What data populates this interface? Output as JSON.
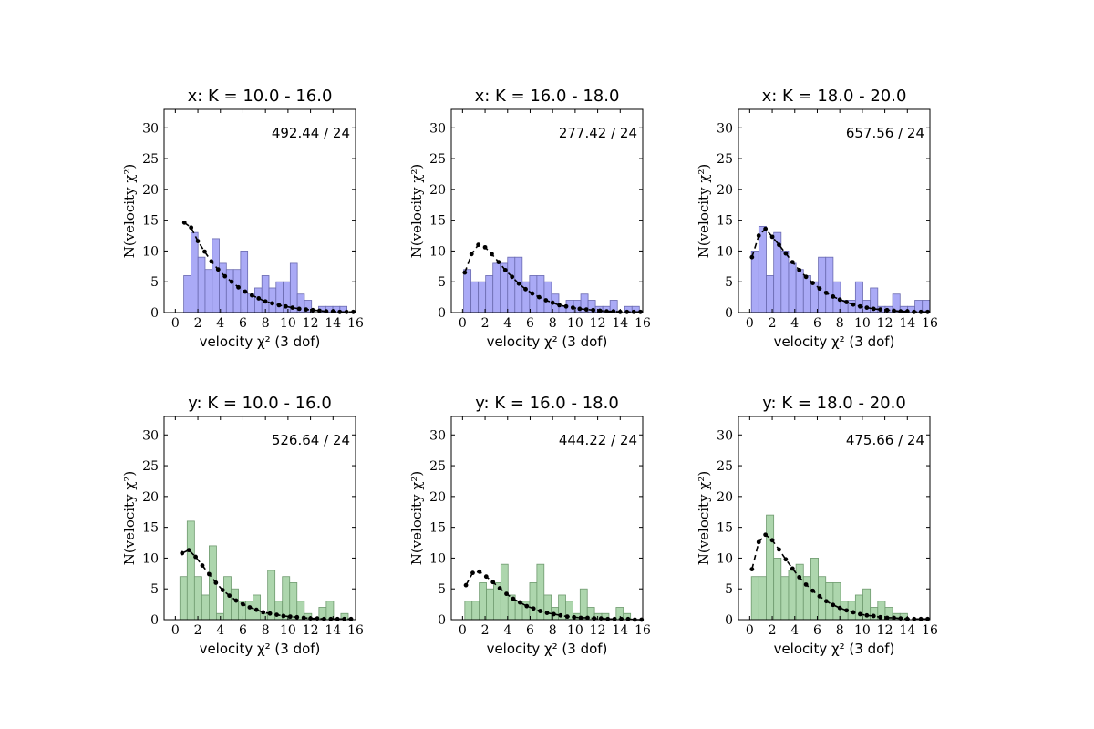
{
  "figure": {
    "axis_style": {
      "frame": "box",
      "grid": false
    },
    "colors": {
      "x_bars": "#aaaaf6",
      "x_edge": "#6a6ab0",
      "y_bars": "#add6ad",
      "y_edge": "#6f9a6f",
      "fit_curve": "#000000"
    }
  },
  "chart_data": [
    {
      "type": "bar",
      "title": "x: K = 10.0 - 16.0",
      "annotation": "492.44 / 24",
      "xlabel": "velocity χ² (3 dof)",
      "ylabel": "N(velocity χ²)",
      "xlim": [
        -1,
        16
      ],
      "ylim": [
        0,
        33
      ],
      "xticks": [
        0,
        2,
        4,
        6,
        8,
        10,
        12,
        14,
        16
      ],
      "yticks": [
        0,
        5,
        10,
        15,
        20,
        25,
        30
      ],
      "bin_start": 0.75,
      "bin_width": 0.63,
      "values": [
        6,
        13,
        9,
        7,
        12,
        8,
        7,
        7,
        10,
        3,
        4,
        6,
        4,
        5,
        5,
        8,
        3,
        2,
        0,
        1,
        1,
        1,
        1
      ],
      "bar_color": "x",
      "fit": {
        "x": [
          0.8,
          1.4,
          2.0,
          2.6,
          3.2,
          3.8,
          4.4,
          5.0,
          5.6,
          6.2,
          6.8,
          7.4,
          8.0,
          8.6,
          9.2,
          9.8,
          10.4,
          11.0,
          11.6,
          12.2,
          12.8,
          13.4,
          14.0,
          14.6,
          15.2,
          15.8
        ],
        "y": [
          14.6,
          13.8,
          11.6,
          9.9,
          8.3,
          7.0,
          5.9,
          5.0,
          4.1,
          3.4,
          2.8,
          2.3,
          1.8,
          1.5,
          1.2,
          1.0,
          0.8,
          0.6,
          0.5,
          0.4,
          0.3,
          0.2,
          0.2,
          0.1,
          0.1,
          0.1
        ]
      }
    },
    {
      "type": "bar",
      "title": "x: K = 16.0 - 18.0",
      "annotation": "277.42 / 24",
      "xlabel": "velocity χ² (3 dof)",
      "ylabel": "N(velocity χ²)",
      "xlim": [
        -1,
        16
      ],
      "ylim": [
        0,
        33
      ],
      "xticks": [
        0,
        2,
        4,
        6,
        8,
        10,
        12,
        14,
        16
      ],
      "yticks": [
        0,
        5,
        10,
        15,
        20,
        25,
        30
      ],
      "bin_start": 0.1,
      "bin_width": 0.65,
      "values": [
        7,
        5,
        5,
        6,
        8,
        8,
        9,
        9,
        5,
        6,
        6,
        5,
        3,
        1,
        2,
        2,
        3,
        2,
        1,
        1,
        2,
        0,
        1,
        1
      ],
      "bar_color": "x",
      "fit": {
        "x": [
          0.2,
          0.8,
          1.4,
          2.0,
          2.6,
          3.2,
          3.8,
          4.4,
          5.0,
          5.6,
          6.2,
          6.8,
          7.4,
          8.0,
          8.6,
          9.2,
          9.8,
          10.4,
          11.0,
          11.6,
          12.2,
          12.8,
          13.4,
          14.0,
          14.6,
          15.2,
          15.8
        ],
        "y": [
          6.5,
          9.5,
          11.0,
          10.6,
          9.5,
          8.2,
          6.9,
          5.8,
          4.7,
          3.8,
          3.1,
          2.5,
          2.0,
          1.6,
          1.2,
          1.0,
          0.8,
          0.6,
          0.5,
          0.4,
          0.3,
          0.2,
          0.2,
          0.1,
          0.1,
          0.1,
          0.1
        ]
      }
    },
    {
      "type": "bar",
      "title": "x: K = 18.0 - 20.0",
      "annotation": "657.56 / 24",
      "xlabel": "velocity χ² (3 dof)",
      "ylabel": "N(velocity χ²)",
      "xlim": [
        -1,
        16
      ],
      "ylim": [
        0,
        33
      ],
      "xticks": [
        0,
        2,
        4,
        6,
        8,
        10,
        12,
        14,
        16
      ],
      "yticks": [
        0,
        5,
        10,
        15,
        20,
        25,
        30
      ],
      "bin_start": 0.15,
      "bin_width": 0.66,
      "values": [
        10,
        14,
        6,
        13,
        10,
        8,
        7,
        6,
        5,
        9,
        9,
        5,
        2,
        2,
        5,
        2,
        4,
        1,
        1,
        3,
        1,
        1,
        2,
        2
      ],
      "bar_color": "x",
      "fit": {
        "x": [
          0.2,
          0.8,
          1.4,
          2.0,
          2.6,
          3.2,
          3.8,
          4.4,
          5.0,
          5.6,
          6.2,
          6.8,
          7.4,
          8.0,
          8.6,
          9.2,
          9.8,
          10.4,
          11.0,
          11.6,
          12.2,
          12.8,
          13.4,
          14.0,
          14.6,
          15.2,
          15.8
        ],
        "y": [
          9.0,
          12.5,
          13.6,
          12.3,
          11.0,
          9.6,
          8.2,
          6.9,
          5.8,
          4.8,
          3.9,
          3.2,
          2.6,
          2.1,
          1.7,
          1.3,
          1.0,
          0.8,
          0.6,
          0.5,
          0.4,
          0.3,
          0.2,
          0.2,
          0.1,
          0.1,
          0.1
        ]
      }
    },
    {
      "type": "bar",
      "title": "y: K = 10.0 - 16.0",
      "annotation": "526.64 / 24",
      "xlabel": "velocity χ² (3 dof)",
      "ylabel": "N(velocity χ²)",
      "xlim": [
        -1,
        16
      ],
      "ylim": [
        0,
        33
      ],
      "xticks": [
        0,
        2,
        4,
        6,
        8,
        10,
        12,
        14,
        16
      ],
      "yticks": [
        0,
        5,
        10,
        15,
        20,
        25,
        30
      ],
      "bin_start": 0.4,
      "bin_width": 0.65,
      "values": [
        7,
        16,
        7,
        4,
        12,
        1,
        7,
        5,
        3,
        3,
        4,
        1,
        8,
        3,
        7,
        6,
        3,
        1,
        0,
        2,
        3,
        0,
        1
      ],
      "bar_color": "y",
      "fit": {
        "x": [
          0.6,
          1.2,
          1.8,
          2.4,
          3.0,
          3.6,
          4.2,
          4.8,
          5.4,
          6.0,
          6.6,
          7.2,
          7.8,
          8.4,
          9.0,
          9.6,
          10.2,
          10.8,
          11.4,
          12.0,
          12.6,
          13.2,
          13.8,
          14.4,
          15.0,
          15.6
        ],
        "y": [
          10.8,
          11.3,
          10.2,
          8.8,
          7.4,
          6.0,
          4.8,
          3.9,
          3.1,
          2.5,
          2.0,
          1.6,
          1.2,
          1.0,
          0.8,
          0.6,
          0.5,
          0.4,
          0.3,
          0.2,
          0.2,
          0.1,
          0.1,
          0.1,
          0.1,
          0.1
        ]
      }
    },
    {
      "type": "bar",
      "title": "y: K = 16.0 - 18.0",
      "annotation": "444.22 / 24",
      "xlabel": "velocity χ² (3 dof)",
      "ylabel": "N(velocity χ²)",
      "xlim": [
        -1,
        16
      ],
      "ylim": [
        0,
        33
      ],
      "xticks": [
        0,
        2,
        4,
        6,
        8,
        10,
        12,
        14,
        16
      ],
      "yticks": [
        0,
        5,
        10,
        15,
        20,
        25,
        30
      ],
      "bin_start": 0.2,
      "bin_width": 0.64,
      "values": [
        3,
        3,
        6,
        5,
        6,
        9,
        4,
        3,
        3,
        6,
        9,
        4,
        2,
        4,
        3,
        1,
        5,
        2,
        1,
        1,
        0,
        2,
        1,
        0
      ],
      "bar_color": "y",
      "fit": {
        "x": [
          0.3,
          0.9,
          1.5,
          2.1,
          2.7,
          3.3,
          3.9,
          4.5,
          5.1,
          5.7,
          6.3,
          6.9,
          7.5,
          8.1,
          8.7,
          9.3,
          9.9,
          10.5,
          11.1,
          11.7,
          12.3,
          12.9,
          13.5,
          14.1,
          14.7,
          15.3,
          15.9
        ],
        "y": [
          5.6,
          7.6,
          7.8,
          7.0,
          6.1,
          5.1,
          4.2,
          3.4,
          2.8,
          2.2,
          1.8,
          1.4,
          1.1,
          0.9,
          0.7,
          0.5,
          0.4,
          0.3,
          0.3,
          0.2,
          0.2,
          0.1,
          0.1,
          0.1,
          0.1,
          0.0,
          0.0
        ]
      }
    },
    {
      "type": "bar",
      "title": "y: K = 18.0 - 20.0",
      "annotation": "475.66 / 24",
      "xlabel": "velocity χ² (3 dof)",
      "ylabel": "N(velocity χ²)",
      "xlim": [
        -1,
        16
      ],
      "ylim": [
        0,
        33
      ],
      "xticks": [
        0,
        2,
        4,
        6,
        8,
        10,
        12,
        14,
        16
      ],
      "yticks": [
        0,
        5,
        10,
        15,
        20,
        25,
        30
      ],
      "bin_start": 0.15,
      "bin_width": 0.66,
      "values": [
        7,
        7,
        17,
        10,
        7,
        8,
        9,
        7,
        10,
        7,
        6,
        6,
        3,
        3,
        4,
        5,
        2,
        3,
        2,
        1,
        1
      ],
      "bar_color": "y",
      "fit": {
        "x": [
          0.2,
          0.8,
          1.4,
          2.0,
          2.6,
          3.2,
          3.8,
          4.4,
          5.0,
          5.6,
          6.2,
          6.8,
          7.4,
          8.0,
          8.6,
          9.2,
          9.8,
          10.4,
          11.0,
          11.6,
          12.2,
          12.8,
          13.4,
          14.0,
          14.6,
          15.2,
          15.8
        ],
        "y": [
          8.2,
          12.6,
          13.8,
          12.9,
          11.4,
          9.8,
          8.3,
          6.9,
          5.7,
          4.7,
          3.8,
          3.0,
          2.4,
          1.9,
          1.5,
          1.2,
          0.9,
          0.7,
          0.6,
          0.4,
          0.3,
          0.3,
          0.2,
          0.1,
          0.1,
          0.1,
          0.1
        ]
      }
    }
  ]
}
